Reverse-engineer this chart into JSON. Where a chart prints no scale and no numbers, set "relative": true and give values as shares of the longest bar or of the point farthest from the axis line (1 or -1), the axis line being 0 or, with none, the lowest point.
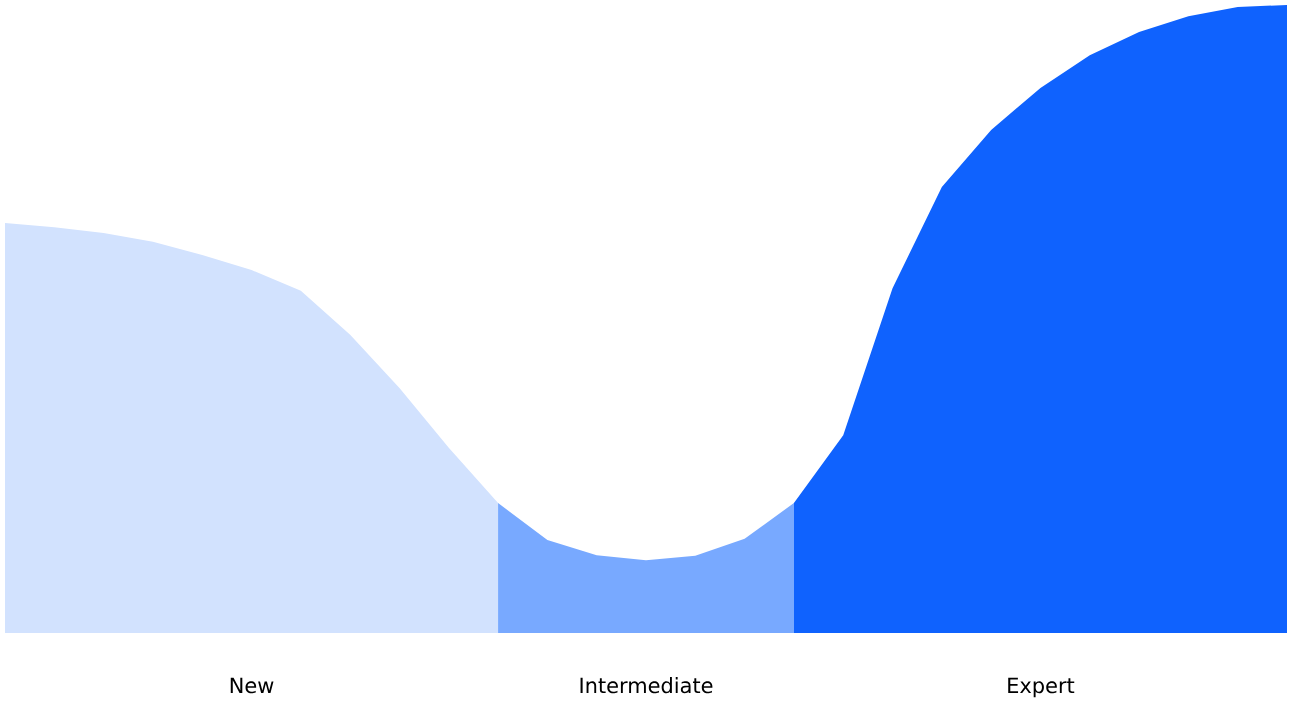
{
  "chart_data": {
    "type": "area",
    "relative": true,
    "categories": [
      null,
      null,
      null,
      null,
      null,
      null,
      null,
      null,
      null,
      null,
      null,
      null,
      null,
      null,
      null,
      null,
      null,
      null,
      null,
      null,
      null,
      null,
      null,
      null,
      null,
      null,
      null
    ],
    "annotations": [
      "New",
      "Intermediate",
      "Expert"
    ],
    "series": [
      {
        "color": "#d2e2fe",
        "values": [
          0.653,
          0.646,
          0.637,
          0.623,
          0.602,
          0.578,
          0.545,
          0.475,
          0.39,
          0.295,
          0.207,
          null,
          null,
          null,
          null,
          null,
          null,
          null,
          null,
          null,
          null,
          null,
          null,
          null,
          null,
          null,
          null
        ]
      },
      {
        "color": "#78a9ff",
        "values": [
          null,
          null,
          null,
          null,
          null,
          null,
          null,
          null,
          null,
          null,
          0.207,
          0.148,
          0.124,
          0.116,
          0.123,
          0.15,
          0.207,
          null,
          null,
          null,
          null,
          null,
          null,
          null,
          null,
          null,
          null
        ]
      },
      {
        "color": "#0f62fe",
        "values": [
          null,
          null,
          null,
          null,
          null,
          null,
          null,
          null,
          null,
          null,
          null,
          null,
          null,
          null,
          null,
          null,
          0.207,
          0.315,
          0.549,
          0.71,
          0.801,
          0.868,
          0.92,
          0.957,
          0.982,
          0.997,
          1
        ]
      }
    ]
  }
}
